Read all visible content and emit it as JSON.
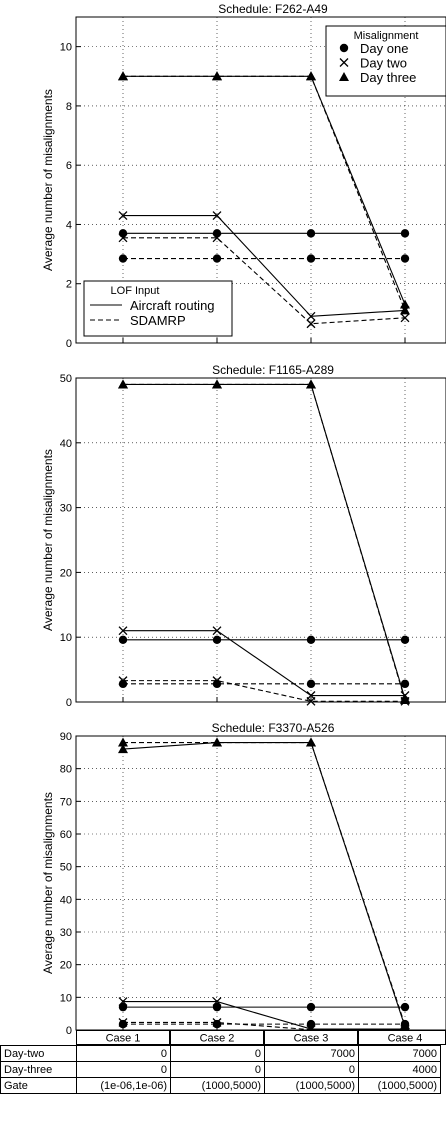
{
  "chart_data": [
    {
      "type": "line",
      "title": "Schedule: F262-A49",
      "ylabel": "Average number of misalignments",
      "ylim": [
        0,
        11
      ],
      "yticks": [
        0,
        2,
        4,
        6,
        8,
        10
      ],
      "categories": [
        "Case 1",
        "Case 2",
        "Case 3",
        "Case 4"
      ],
      "grid": true,
      "series": [
        {
          "name": "Day one",
          "lof_input": "Aircraft routing",
          "marker": "circle",
          "linestyle": "solid",
          "values": [
            3.7,
            3.7,
            3.7,
            3.7
          ]
        },
        {
          "name": "Day one",
          "lof_input": "SDAMRP",
          "marker": "circle",
          "linestyle": "dashed",
          "values": [
            2.85,
            2.85,
            2.85,
            2.85
          ]
        },
        {
          "name": "Day two",
          "lof_input": "Aircraft routing",
          "marker": "x",
          "linestyle": "solid",
          "values": [
            4.3,
            4.3,
            0.9,
            1.1
          ]
        },
        {
          "name": "Day two",
          "lof_input": "SDAMRP",
          "marker": "x",
          "linestyle": "dashed",
          "values": [
            3.55,
            3.55,
            0.65,
            0.85
          ]
        },
        {
          "name": "Day three",
          "lof_input": "Aircraft routing",
          "marker": "triangle",
          "linestyle": "solid",
          "values": [
            9.0,
            9.0,
            9.0,
            1.3
          ]
        },
        {
          "name": "Day three",
          "lof_input": "SDAMRP",
          "marker": "triangle",
          "linestyle": "dashed",
          "values": [
            9.0,
            9.0,
            9.0,
            1.1
          ]
        }
      ],
      "legend_markers": {
        "title": "Misalignment",
        "entries": [
          "Day one",
          "Day two",
          "Day three"
        ],
        "placement": "top-right"
      },
      "legend_lof": {
        "title": "LOF Input",
        "entries": [
          "Aircraft routing",
          "SDAMRP"
        ],
        "placement": "bottom-left"
      }
    },
    {
      "type": "line",
      "title": "Schedule: F1165-A289",
      "ylabel": "Average number of misalignments",
      "ylim": [
        0,
        50
      ],
      "yticks": [
        0,
        10,
        20,
        30,
        40,
        50
      ],
      "categories": [
        "Case 1",
        "Case 2",
        "Case 3",
        "Case 4"
      ],
      "grid": true,
      "series": [
        {
          "name": "Day one",
          "lof_input": "Aircraft routing",
          "marker": "circle",
          "linestyle": "solid",
          "values": [
            9.6,
            9.6,
            9.6,
            9.6
          ]
        },
        {
          "name": "Day one",
          "lof_input": "SDAMRP",
          "marker": "circle",
          "linestyle": "dashed",
          "values": [
            2.8,
            2.8,
            2.8,
            2.8
          ]
        },
        {
          "name": "Day two",
          "lof_input": "Aircraft routing",
          "marker": "x",
          "linestyle": "solid",
          "values": [
            11.0,
            11.0,
            1.0,
            1.0
          ]
        },
        {
          "name": "Day two",
          "lof_input": "SDAMRP",
          "marker": "x",
          "linestyle": "dashed",
          "values": [
            3.3,
            3.3,
            0.1,
            0.1
          ]
        },
        {
          "name": "Day three",
          "lof_input": "Aircraft routing",
          "marker": "triangle",
          "linestyle": "solid",
          "values": [
            49.0,
            49.0,
            49.0,
            0.5
          ]
        },
        {
          "name": "Day three",
          "lof_input": "SDAMRP",
          "marker": "triangle",
          "linestyle": "dashed",
          "values": [
            49.0,
            49.0,
            49.0,
            0.3
          ]
        }
      ]
    },
    {
      "type": "line",
      "title": "Schedule: F3370-A526",
      "ylabel": "Average number of misalignments",
      "ylim": [
        0,
        90
      ],
      "yticks": [
        0,
        10,
        20,
        30,
        40,
        50,
        60,
        70,
        80,
        90
      ],
      "categories": [
        "Case 1",
        "Case 2",
        "Case 3",
        "Case 4"
      ],
      "grid": true,
      "series": [
        {
          "name": "Day one",
          "lof_input": "Aircraft routing",
          "marker": "circle",
          "linestyle": "solid",
          "values": [
            7.0,
            7.0,
            7.0,
            7.0
          ]
        },
        {
          "name": "Day one",
          "lof_input": "SDAMRP",
          "marker": "circle",
          "linestyle": "dashed",
          "values": [
            1.8,
            1.8,
            1.8,
            1.8
          ]
        },
        {
          "name": "Day two",
          "lof_input": "Aircraft routing",
          "marker": "x",
          "linestyle": "solid",
          "values": [
            8.7,
            8.7,
            0.3,
            0.3
          ]
        },
        {
          "name": "Day two",
          "lof_input": "SDAMRP",
          "marker": "x",
          "linestyle": "dashed",
          "values": [
            2.3,
            2.3,
            0.1,
            0.1
          ]
        },
        {
          "name": "Day three",
          "lof_input": "Aircraft routing",
          "marker": "triangle",
          "linestyle": "solid",
          "values": [
            86.0,
            88.0,
            88.0,
            1.0
          ]
        },
        {
          "name": "Day three",
          "lof_input": "SDAMRP",
          "marker": "triangle",
          "linestyle": "dashed",
          "values": [
            88.0,
            88.0,
            88.0,
            1.5
          ]
        }
      ]
    }
  ],
  "table": {
    "columns": [
      "Case 1",
      "Case 2",
      "Case 3",
      "Case 4"
    ],
    "rows": [
      {
        "label": "Day-two",
        "values": [
          "0",
          "0",
          "7000",
          "7000"
        ]
      },
      {
        "label": "Day-three",
        "values": [
          "0",
          "0",
          "0",
          "4000"
        ]
      },
      {
        "label": "Gate",
        "values": [
          "(1e-06,1e-06)",
          "(1000,5000)",
          "(1000,5000)",
          "(1000,5000)"
        ]
      }
    ]
  }
}
